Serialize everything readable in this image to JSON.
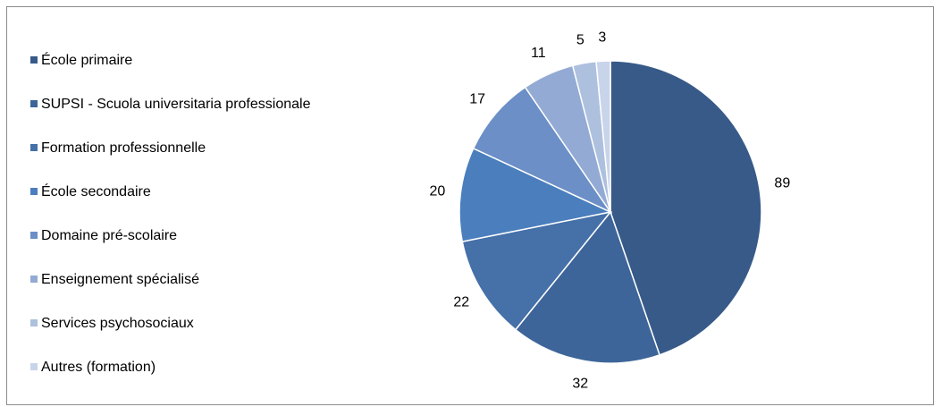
{
  "chart_data": {
    "type": "pie",
    "categories": [
      "École primaire",
      "SUPSI - Scuola universitaria professionale",
      "Formation professionnelle",
      "École secondaire",
      "Domaine pré-scolaire",
      "Enseignement spécialisé",
      "Services psychosociaux",
      "Autres (formation)"
    ],
    "values": [
      89,
      32,
      22,
      20,
      17,
      11,
      5,
      3
    ],
    "colors": [
      "#375a88",
      "#3e6599",
      "#4570a8",
      "#4b7ebd",
      "#6b8fc6",
      "#93abd4",
      "#adc0de",
      "#c8d4ea"
    ],
    "legend_position": "left",
    "start_angle_deg": 0,
    "direction": "clockwise"
  }
}
